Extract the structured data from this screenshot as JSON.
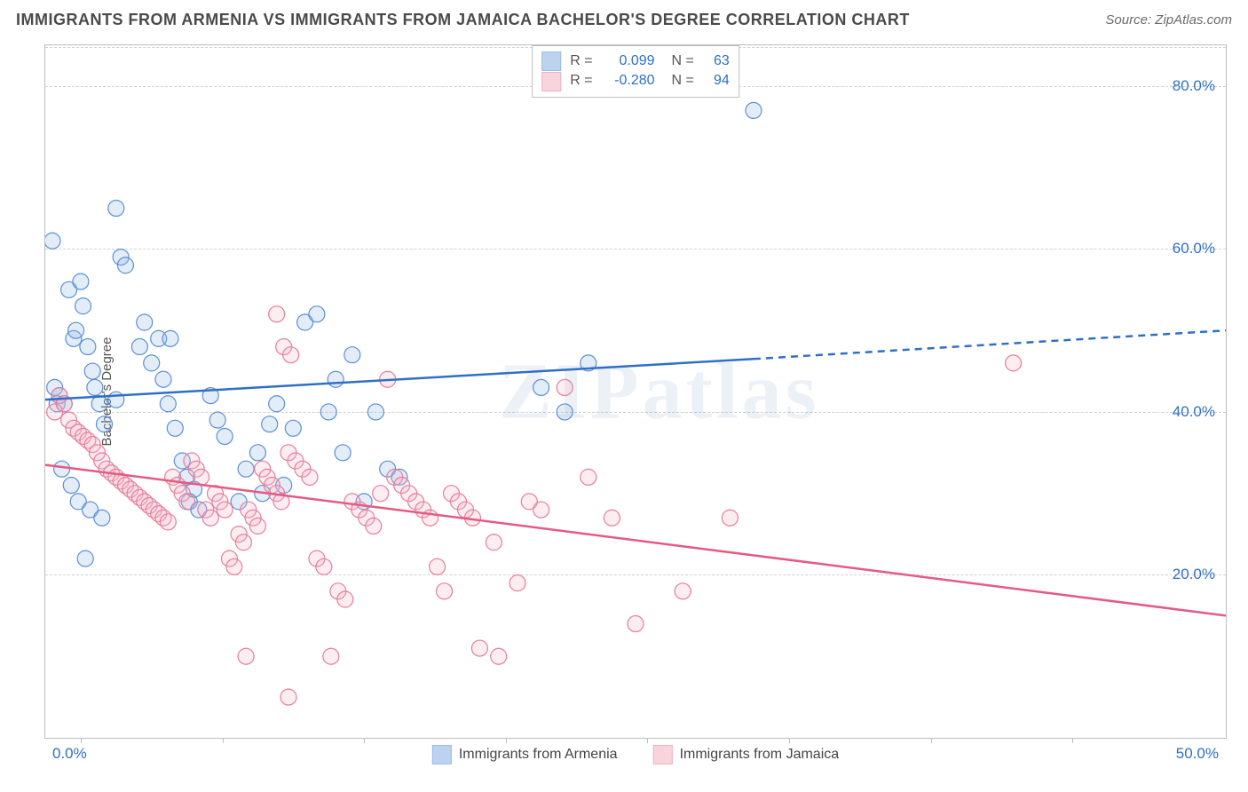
{
  "title": "IMMIGRANTS FROM ARMENIA VS IMMIGRANTS FROM JAMAICA BACHELOR'S DEGREE CORRELATION CHART",
  "source_label": "Source: ",
  "source_value": "ZipAtlas.com",
  "watermark": "ZIPatlas",
  "ylabel": "Bachelor's Degree",
  "chart": {
    "type": "scatter-with-regression",
    "background": "#ffffff",
    "grid_color": "#d0d0d0",
    "axis_color": "#bdbdbd",
    "tick_color": "#2f6fc7",
    "label_color": "#555555",
    "xlim": [
      0,
      50
    ],
    "ylim": [
      0,
      85
    ],
    "yticks": [
      20,
      40,
      60,
      80
    ],
    "ytick_labels": [
      "20.0%",
      "40.0%",
      "60.0%",
      "80.0%"
    ],
    "xtick_labels": [
      "0.0%",
      "50.0%"
    ],
    "xtick_positions_pct": [
      3,
      15,
      27,
      39,
      51,
      63,
      75,
      87
    ],
    "point_radius": 9,
    "point_stroke_width": 1.2,
    "point_fill_opacity": 0.25,
    "line_width": 2.5,
    "series": [
      {
        "name": "Immigrants from Armenia",
        "color_fill": "#8fb6e4",
        "color_stroke": "#5c8fd6",
        "line_color": "#2f6fc7",
        "R": "0.099",
        "N": "63",
        "regression": {
          "x1": 0,
          "y1": 41.5,
          "x2_solid": 30,
          "y2_solid": 46.5,
          "x2": 50,
          "y2": 50
        },
        "points": [
          [
            0.3,
            61
          ],
          [
            0.4,
            43
          ],
          [
            0.5,
            41
          ],
          [
            0.6,
            42
          ],
          [
            0.8,
            41
          ],
          [
            1,
            55
          ],
          [
            1.2,
            49
          ],
          [
            1.3,
            50
          ],
          [
            1.5,
            56
          ],
          [
            1.6,
            53
          ],
          [
            1.8,
            48
          ],
          [
            2,
            45
          ],
          [
            2.1,
            43
          ],
          [
            2.3,
            41
          ],
          [
            2.5,
            38.5
          ],
          [
            0.7,
            33
          ],
          [
            1.1,
            31
          ],
          [
            1.4,
            29
          ],
          [
            1.9,
            28
          ],
          [
            2.4,
            27
          ],
          [
            3,
            65
          ],
          [
            3.2,
            59
          ],
          [
            3.4,
            58
          ],
          [
            3,
            41.5
          ],
          [
            4,
            48
          ],
          [
            4.2,
            51
          ],
          [
            4.5,
            46
          ],
          [
            4.8,
            49
          ],
          [
            5,
            44
          ],
          [
            5.2,
            41
          ],
          [
            5.5,
            38
          ],
          [
            5.8,
            34
          ],
          [
            6,
            32
          ],
          [
            6.1,
            29
          ],
          [
            6.3,
            30.5
          ],
          [
            6.5,
            28
          ],
          [
            1.7,
            22
          ],
          [
            7,
            42
          ],
          [
            7.3,
            39
          ],
          [
            7.6,
            37
          ],
          [
            5.3,
            49
          ],
          [
            8.2,
            29
          ],
          [
            8.5,
            33
          ],
          [
            9,
            35
          ],
          [
            9.2,
            30
          ],
          [
            9.5,
            38.5
          ],
          [
            9.8,
            41
          ],
          [
            10.1,
            31
          ],
          [
            10.5,
            38
          ],
          [
            11,
            51
          ],
          [
            11.5,
            52
          ],
          [
            12,
            40
          ],
          [
            12.3,
            44
          ],
          [
            12.6,
            35
          ],
          [
            13,
            47
          ],
          [
            13.5,
            29
          ],
          [
            14,
            40
          ],
          [
            14.5,
            33
          ],
          [
            15,
            32
          ],
          [
            21,
            43
          ],
          [
            22,
            40
          ],
          [
            23,
            46
          ],
          [
            30,
            77
          ]
        ]
      },
      {
        "name": "Immigrants from Jamaica",
        "color_fill": "#f4b8c7",
        "color_stroke": "#e77d9a",
        "line_color": "#e55a83",
        "R": "-0.280",
        "N": "94",
        "regression": {
          "x1": 0,
          "y1": 33.5,
          "x2_solid": 50,
          "y2_solid": 15,
          "x2": 50,
          "y2": 15
        },
        "points": [
          [
            0.4,
            40
          ],
          [
            0.6,
            42
          ],
          [
            0.8,
            41
          ],
          [
            1,
            39
          ],
          [
            1.2,
            38
          ],
          [
            1.4,
            37.5
          ],
          [
            1.6,
            37
          ],
          [
            1.8,
            36.5
          ],
          [
            2,
            36
          ],
          [
            2.2,
            35
          ],
          [
            2.4,
            34
          ],
          [
            2.6,
            33
          ],
          [
            2.8,
            32.5
          ],
          [
            3,
            32
          ],
          [
            3.2,
            31.5
          ],
          [
            3.4,
            31
          ],
          [
            3.6,
            30.5
          ],
          [
            3.8,
            30
          ],
          [
            4,
            29.5
          ],
          [
            4.2,
            29
          ],
          [
            4.4,
            28.5
          ],
          [
            4.6,
            28
          ],
          [
            4.8,
            27.5
          ],
          [
            5,
            27
          ],
          [
            5.2,
            26.5
          ],
          [
            5.4,
            32
          ],
          [
            5.6,
            31
          ],
          [
            5.8,
            30
          ],
          [
            6,
            29
          ],
          [
            6.2,
            34
          ],
          [
            6.4,
            33
          ],
          [
            6.6,
            32
          ],
          [
            6.8,
            28
          ],
          [
            7,
            27
          ],
          [
            7.2,
            30
          ],
          [
            7.4,
            29
          ],
          [
            7.6,
            28
          ],
          [
            7.8,
            22
          ],
          [
            8,
            21
          ],
          [
            8.2,
            25
          ],
          [
            8.4,
            24
          ],
          [
            8.6,
            28
          ],
          [
            8.8,
            27
          ],
          [
            9,
            26
          ],
          [
            9.2,
            33
          ],
          [
            9.4,
            32
          ],
          [
            9.6,
            31
          ],
          [
            9.8,
            30
          ],
          [
            10,
            29
          ],
          [
            10.3,
            35
          ],
          [
            10.6,
            34
          ],
          [
            10.9,
            33
          ],
          [
            11.2,
            32
          ],
          [
            11.5,
            22
          ],
          [
            11.8,
            21
          ],
          [
            12.1,
            10
          ],
          [
            12.4,
            18
          ],
          [
            12.7,
            17
          ],
          [
            13,
            29
          ],
          [
            13.3,
            28
          ],
          [
            13.6,
            27
          ],
          [
            13.9,
            26
          ],
          [
            14.2,
            30
          ],
          [
            14.5,
            44
          ],
          [
            14.8,
            32
          ],
          [
            15.1,
            31
          ],
          [
            15.4,
            30
          ],
          [
            15.7,
            29
          ],
          [
            16,
            28
          ],
          [
            16.3,
            27
          ],
          [
            16.6,
            21
          ],
          [
            16.9,
            18
          ],
          [
            17.2,
            30
          ],
          [
            17.5,
            29
          ],
          [
            17.8,
            28
          ],
          [
            18.1,
            27
          ],
          [
            18.4,
            11
          ],
          [
            19,
            24
          ],
          [
            19.2,
            10
          ],
          [
            9.8,
            52
          ],
          [
            10.1,
            48
          ],
          [
            10.4,
            47
          ],
          [
            10.3,
            5
          ],
          [
            20,
            19
          ],
          [
            20.5,
            29
          ],
          [
            21,
            28
          ],
          [
            22,
            43
          ],
          [
            23,
            32
          ],
          [
            24,
            27
          ],
          [
            25,
            14
          ],
          [
            27,
            18
          ],
          [
            29,
            27
          ],
          [
            41,
            46
          ],
          [
            8.5,
            10
          ]
        ]
      }
    ]
  },
  "stat_legend_labels": {
    "R": "R =",
    "N": "N ="
  },
  "bottom_legend": [
    "Immigrants from Armenia",
    "Immigrants from Jamaica"
  ]
}
